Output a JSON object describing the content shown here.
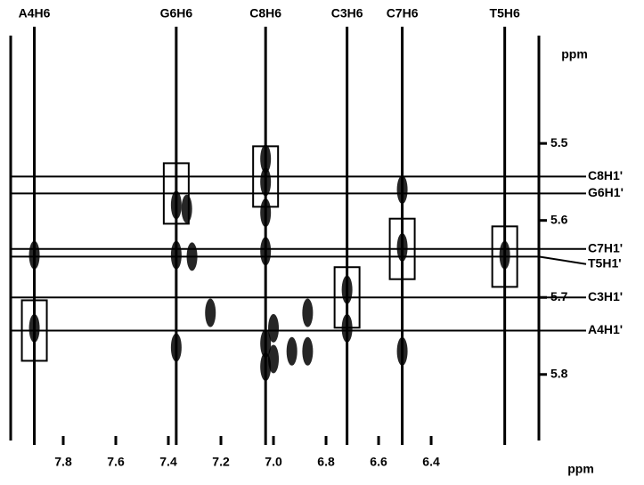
{
  "chart_data": {
    "type": "contour",
    "xlabel": "ppm",
    "ylabel": "ppm",
    "xlim": [
      8.0,
      5.99
    ],
    "ylim": [
      5.36,
      5.88
    ],
    "xticks": [
      7.8,
      7.6,
      7.4,
      7.2,
      {
        "value": 7,
        "label": "7.0"
      },
      6.8,
      6.6,
      6.4
    ],
    "yticks": [
      5.5,
      5.6,
      5.7,
      5.8
    ],
    "color": "#000000",
    "columns": {
      "labels": [
        "A4H6",
        "G6H6",
        "C8H6",
        "C3H6",
        "C7H6",
        "T5H6"
      ],
      "x": [
        7.91,
        7.37,
        7.03,
        6.72,
        6.51,
        6.12
      ]
    },
    "rows": {
      "labels": [
        "A4H1'",
        "G6H1'",
        "C8H1'",
        "C3H1'",
        "C7H1'",
        "T5H1'"
      ],
      "y": [
        5.743,
        5.565,
        5.543,
        5.7,
        5.637,
        5.647
      ]
    },
    "peaks": {
      "x": [
        7.91,
        7.91,
        7.37,
        7.37,
        7.37,
        7.33,
        7.31,
        7.24,
        7.03,
        7.03,
        7.03,
        7.03,
        7.03,
        7.03,
        7.0,
        7.0,
        6.93,
        6.87,
        6.87,
        6.72,
        6.72,
        6.51,
        6.51,
        6.51,
        6.12
      ],
      "y": [
        5.645,
        5.74,
        5.58,
        5.645,
        5.765,
        5.585,
        5.647,
        5.72,
        5.52,
        5.55,
        5.59,
        5.64,
        5.76,
        5.79,
        5.74,
        5.78,
        5.77,
        5.72,
        5.77,
        5.69,
        5.74,
        5.56,
        5.635,
        5.77,
        5.645
      ]
    }
  }
}
